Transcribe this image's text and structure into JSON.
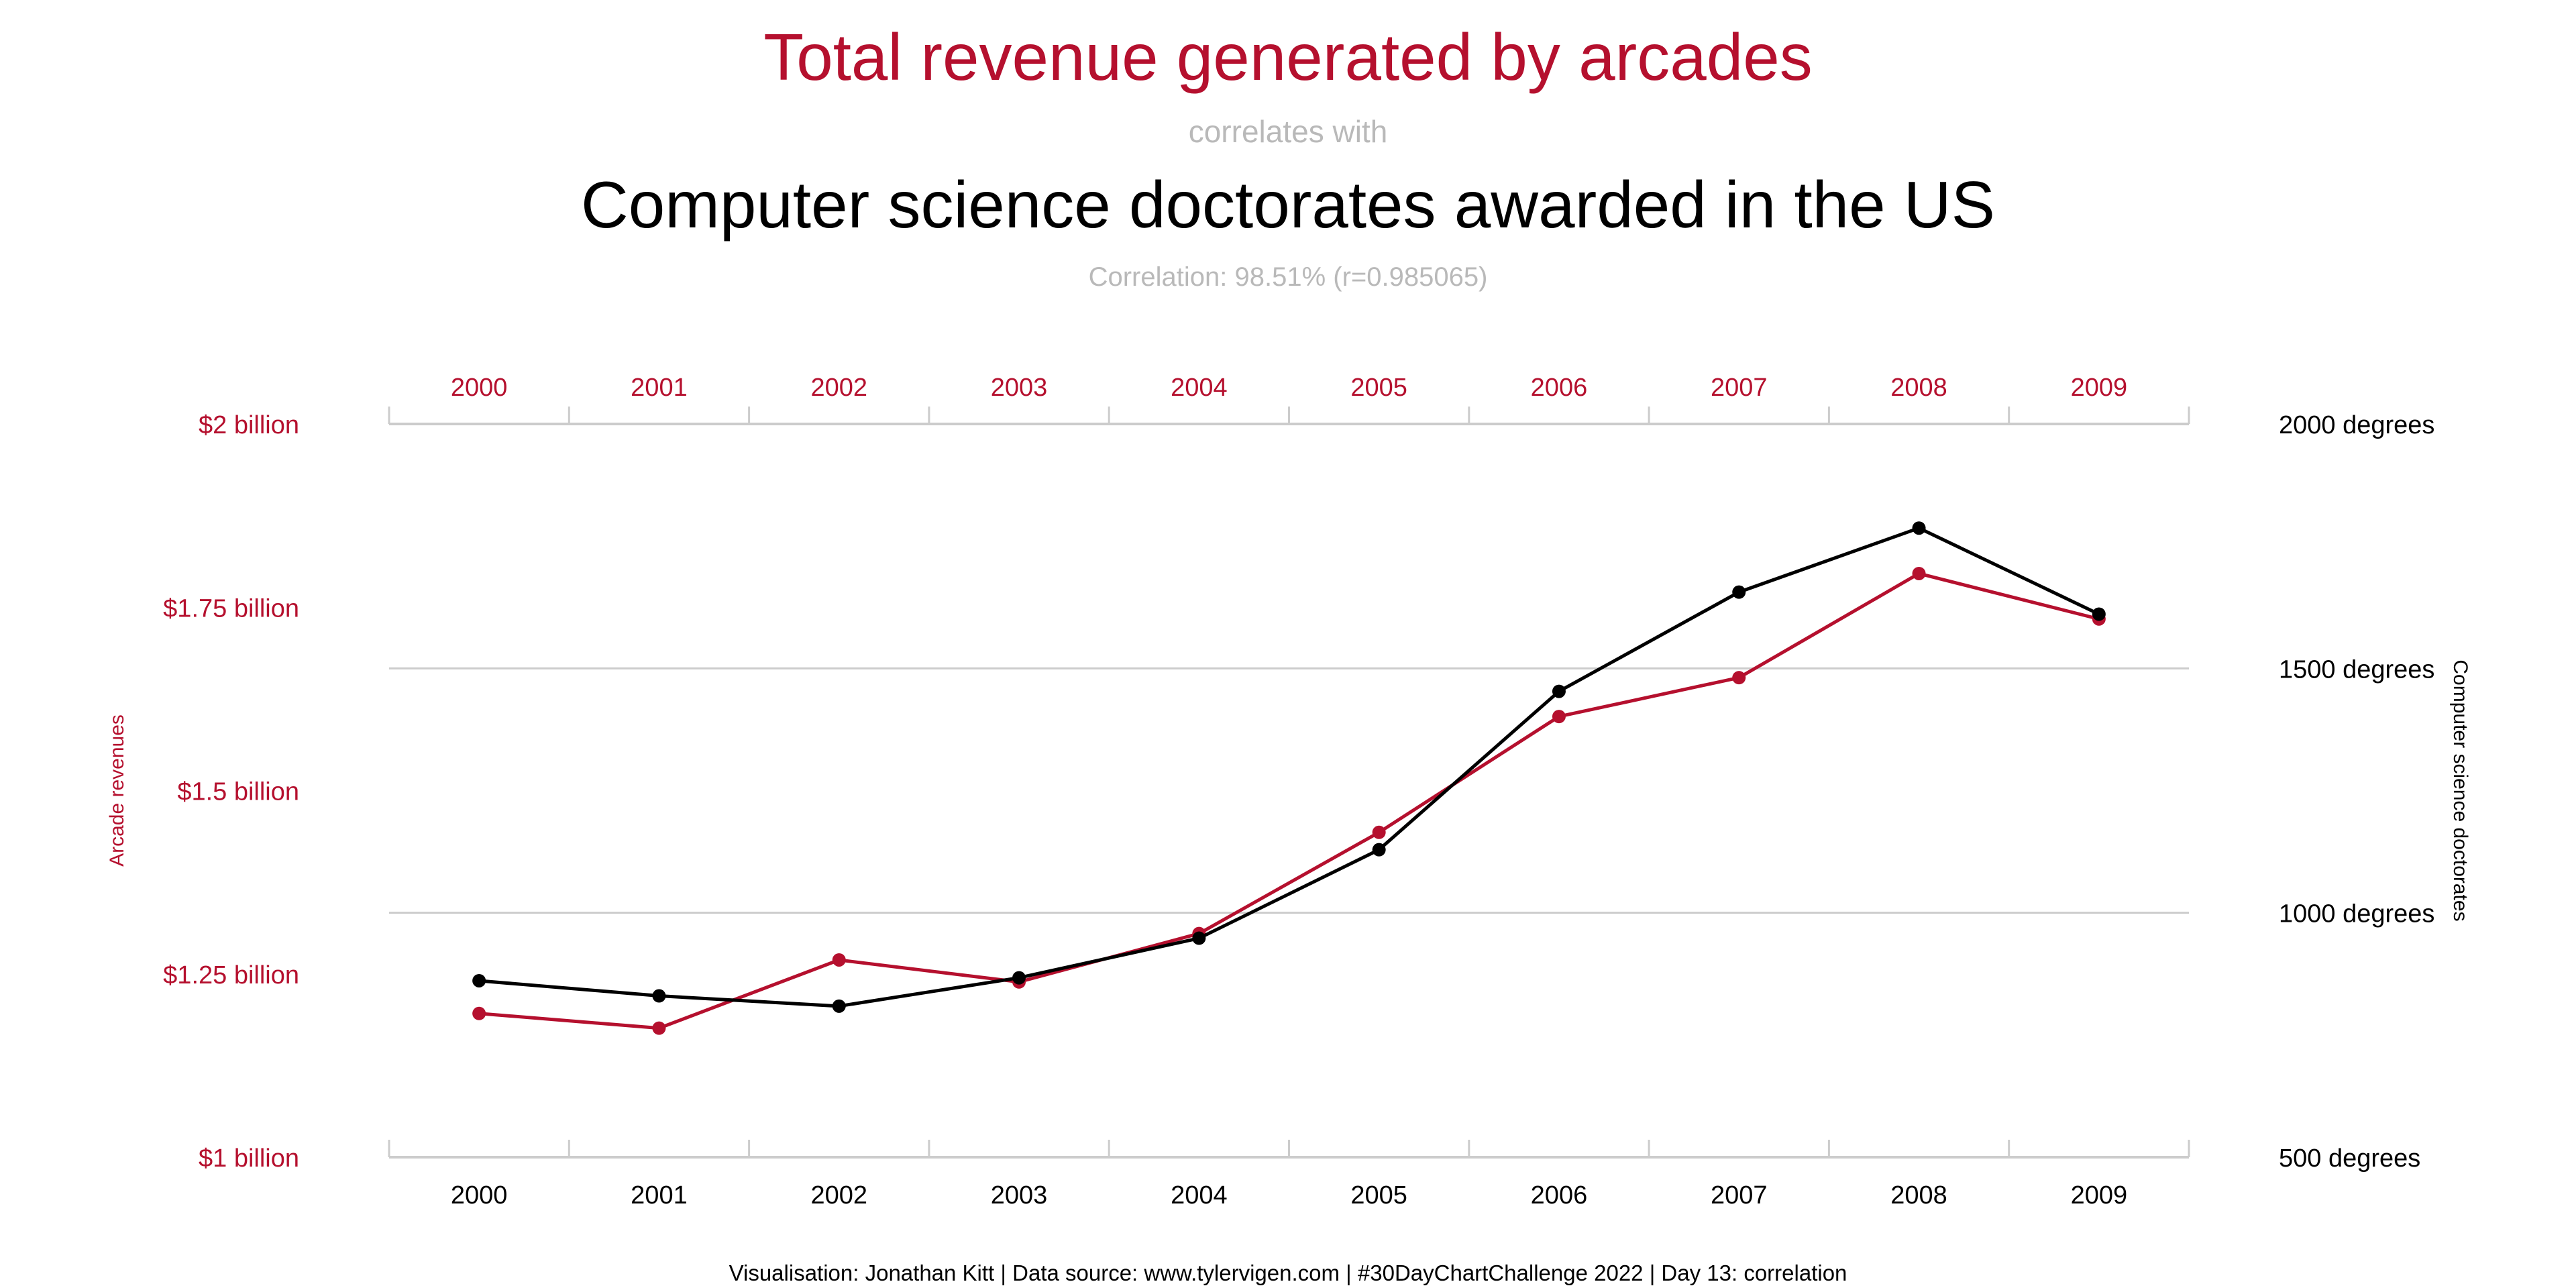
{
  "header": {
    "title": "Total revenue generated by arcades",
    "connector": "correlates with",
    "subtitle": "Computer science doctorates awarded in the US",
    "correlation": "Correlation: 98.51% (r=0.985065)"
  },
  "footer": {
    "credit": "Visualisation: Jonathan Kitt | Data source: www.tylervigen.com | #30DayChartChallenge 2022 | Day 13: correlation"
  },
  "colors": {
    "revenue": "#b5102e",
    "doctorates": "#000000",
    "grid": "#cccccc",
    "muted": "#b9b9b9"
  },
  "chart_data": {
    "type": "line",
    "x": [
      2000,
      2001,
      2002,
      2003,
      2004,
      2005,
      2006,
      2007,
      2008,
      2009
    ],
    "top_tick_labels": [
      "2000",
      "2001",
      "2002",
      "2003",
      "2004",
      "2005",
      "2006",
      "2007",
      "2008",
      "2009"
    ],
    "bottom_tick_labels": [
      "2000",
      "2001",
      "2002",
      "2003",
      "2004",
      "2005",
      "2006",
      "2007",
      "2008",
      "2009"
    ],
    "series": [
      {
        "name": "Arcade revenues",
        "axis": "left",
        "values": [
          1.196,
          1.176,
          1.269,
          1.239,
          1.305,
          1.443,
          1.601,
          1.654,
          1.796,
          1.734
        ]
      },
      {
        "name": "Computer science doctorates",
        "axis": "right",
        "values": [
          861,
          830,
          809,
          867,
          948,
          1129,
          1453,
          1656,
          1787,
          1611
        ]
      }
    ],
    "left_axis": {
      "label": "Arcade revenues",
      "unit": "billion dollars",
      "ylim": [
        1,
        2
      ],
      "ticks": [
        1,
        1.25,
        1.5,
        1.75,
        2
      ],
      "tick_labels": [
        "$1 billion",
        "$1.25 billion",
        "$1.5 billion",
        "$1.75 billion",
        "$2 billion"
      ]
    },
    "right_axis": {
      "label": "Computer science doctorates",
      "unit": "degrees",
      "ylim": [
        500,
        2000
      ],
      "ticks": [
        500,
        1000,
        1500,
        2000
      ],
      "tick_labels": [
        "500 degrees",
        "1000 degrees",
        "1500 degrees",
        "2000 degrees"
      ]
    },
    "grid": true
  }
}
